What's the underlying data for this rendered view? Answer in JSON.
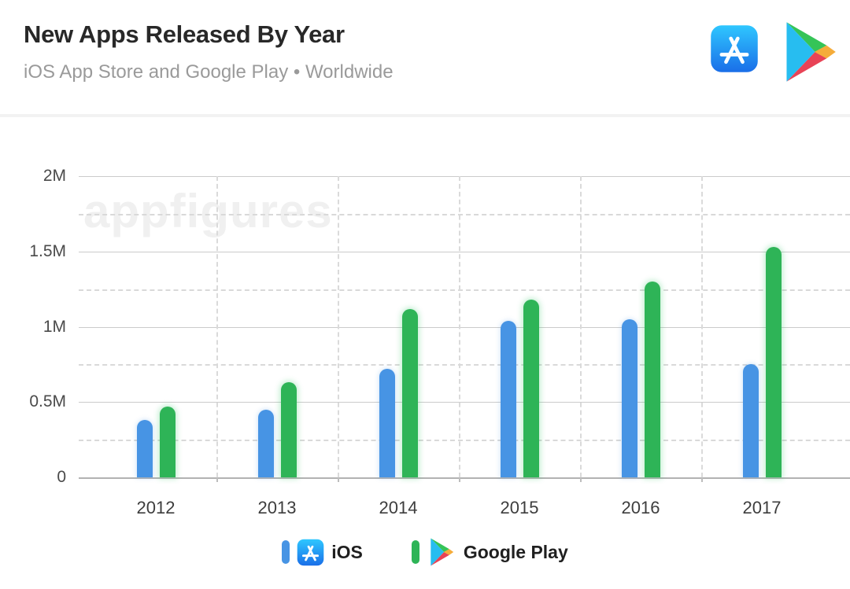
{
  "header": {
    "title": "New Apps Released By Year",
    "subtitle": "iOS App Store and Google Play • Worldwide",
    "icons": [
      "app-store-icon",
      "google-play-icon"
    ]
  },
  "watermark": "appfigures",
  "chart_data": {
    "type": "bar",
    "title": "New Apps Released By Year",
    "subtitle": "iOS App Store and Google Play • Worldwide",
    "categories": [
      "2012",
      "2013",
      "2014",
      "2015",
      "2016",
      "2017"
    ],
    "series": [
      {
        "name": "iOS",
        "color": "#4794E4",
        "values": [
          0.38,
          0.45,
          0.72,
          1.04,
          1.05,
          0.75
        ]
      },
      {
        "name": "Google Play",
        "color": "#2EB457",
        "values": [
          0.47,
          0.63,
          1.12,
          1.18,
          1.3,
          1.53
        ]
      }
    ],
    "unit": "millions of apps",
    "xlabel": "",
    "ylabel": "",
    "ylim": [
      0,
      2
    ],
    "yticks": [
      {
        "value": 0,
        "label": "0"
      },
      {
        "value": 0.5,
        "label": "0.5M"
      },
      {
        "value": 1,
        "label": "1M"
      },
      {
        "value": 1.5,
        "label": "1.5M"
      },
      {
        "value": 2,
        "label": "2M"
      }
    ],
    "minor_gridlines": [
      0.25,
      0.75,
      1.25,
      1.75
    ],
    "grid": true,
    "legend_position": "bottom"
  },
  "legend": {
    "items": [
      {
        "label": "iOS",
        "color": "#4794E4",
        "icon": "app-store-icon"
      },
      {
        "label": "Google Play",
        "color": "#2EB457",
        "icon": "google-play-icon"
      }
    ]
  }
}
